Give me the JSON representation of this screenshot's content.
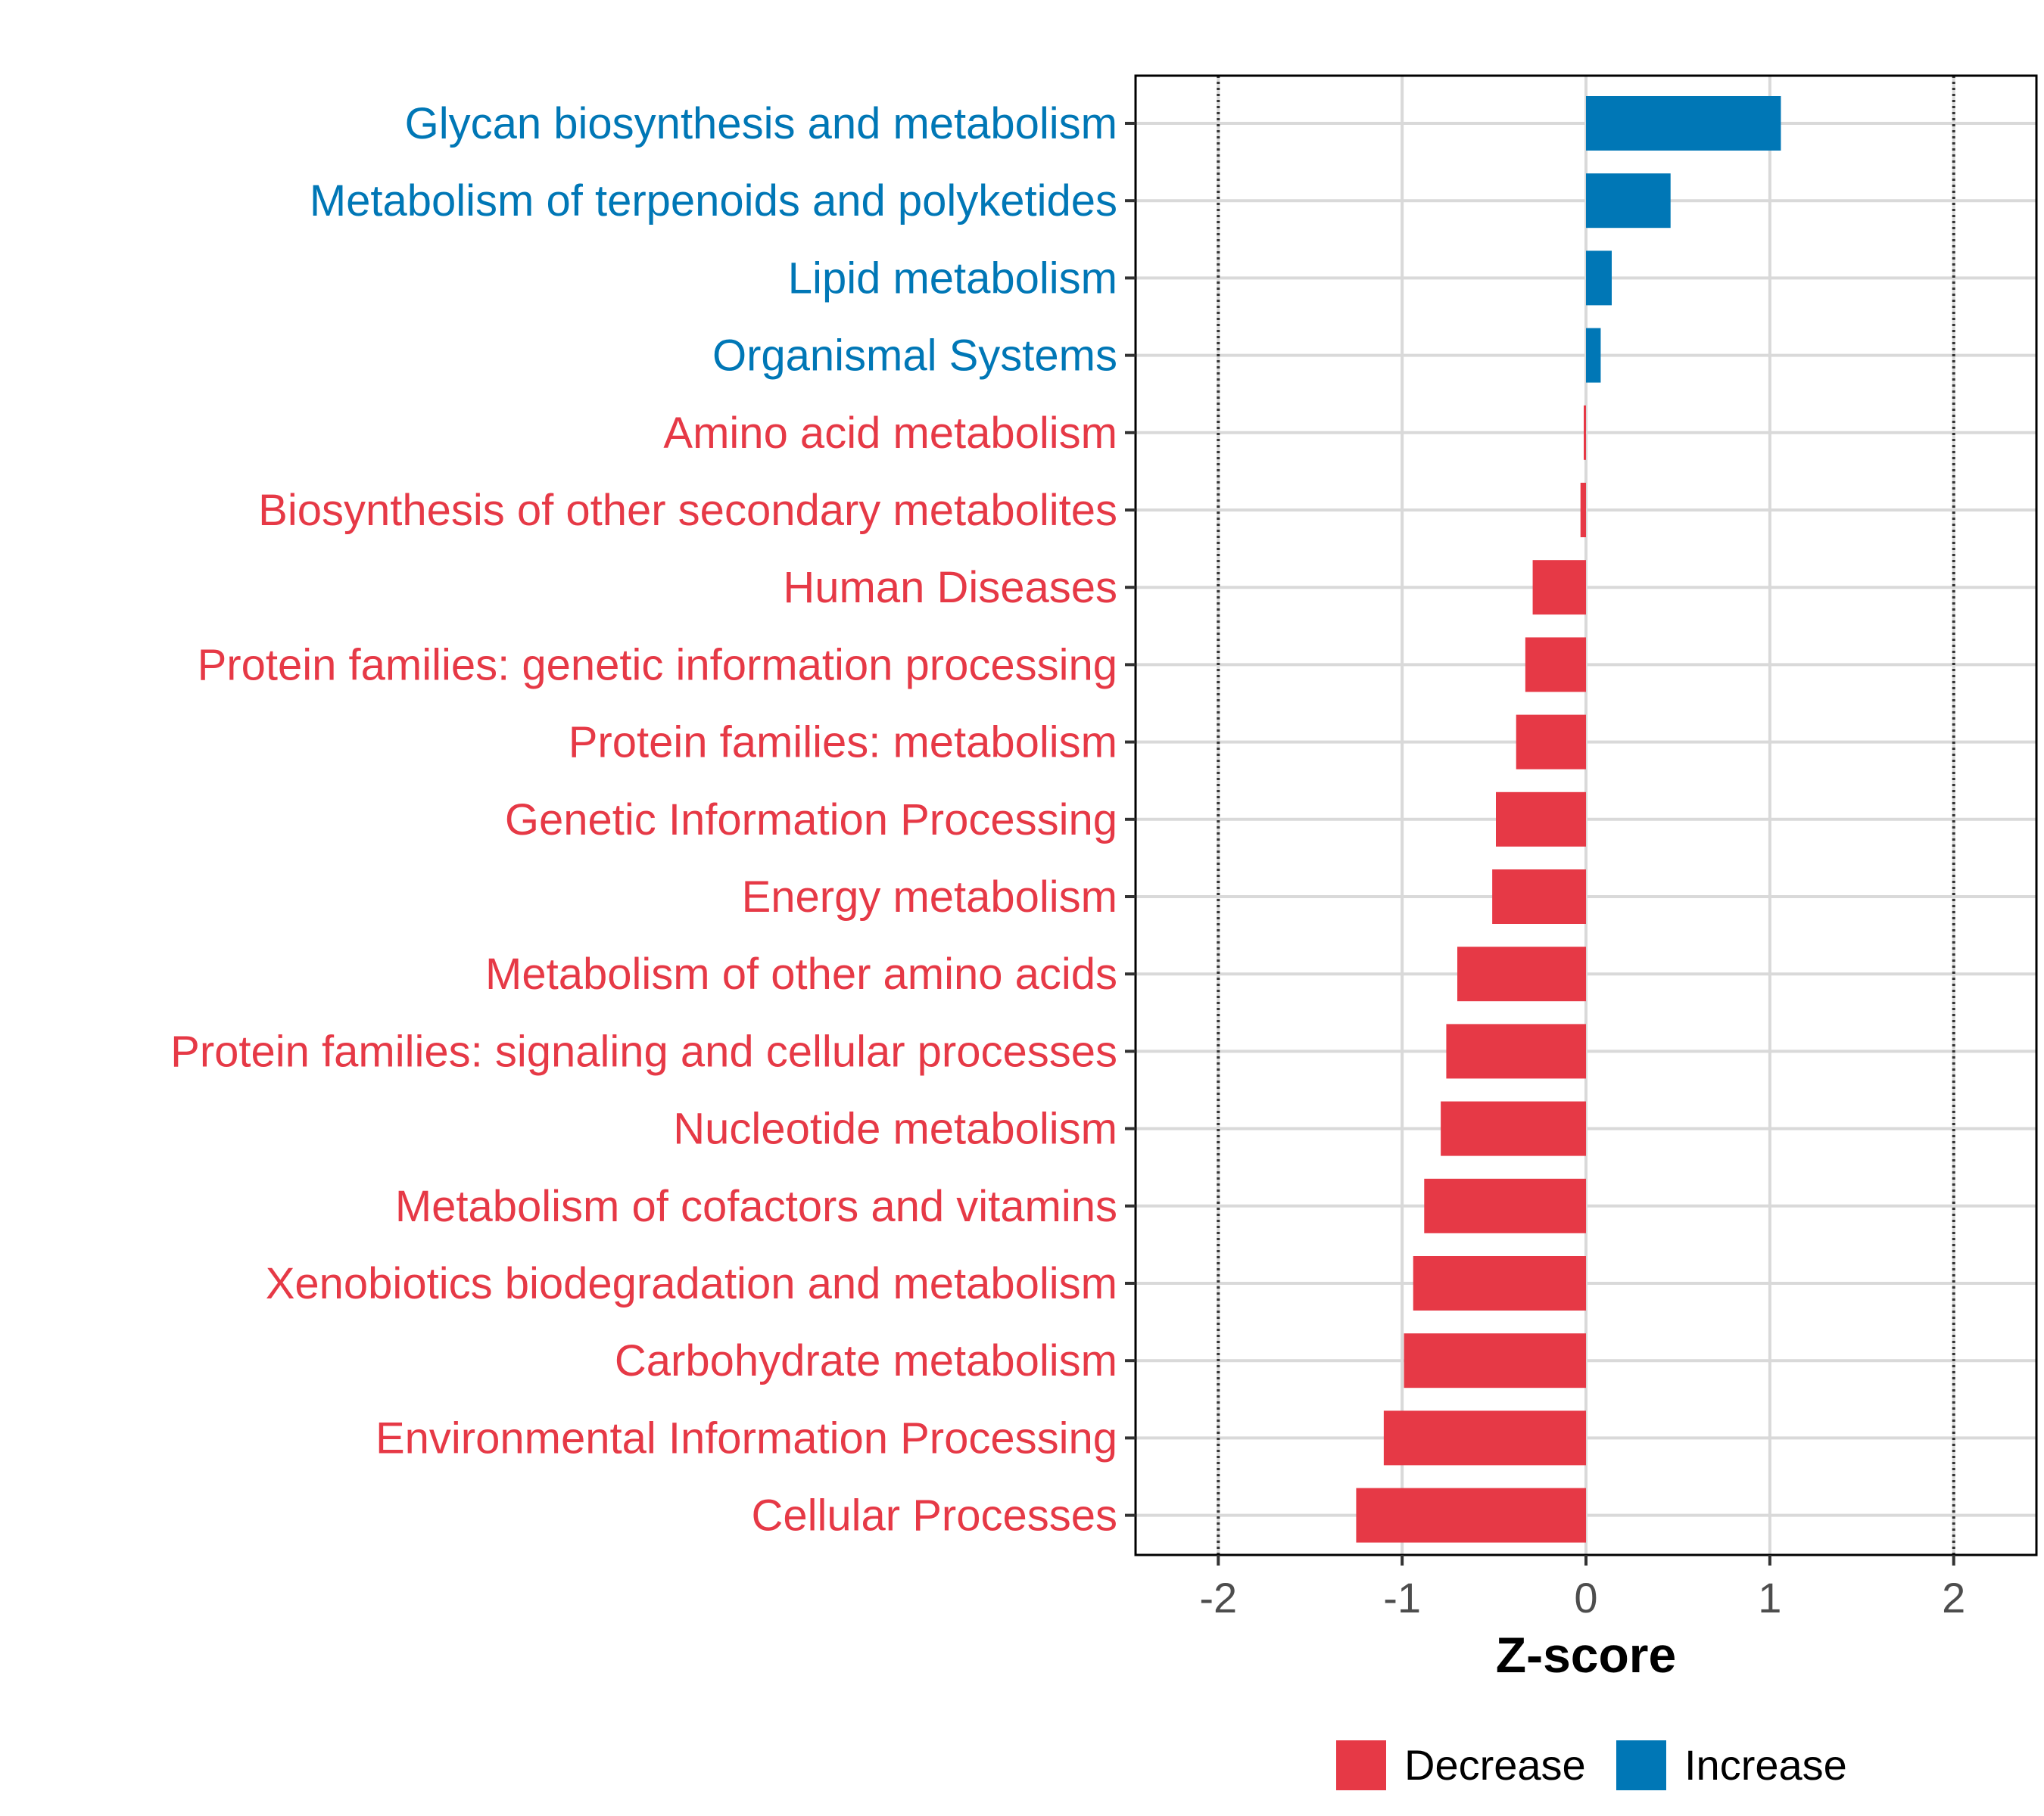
{
  "chart_data": {
    "type": "bar",
    "orientation": "horizontal",
    "xlabel": "Z-score",
    "xlim": [
      -2.45,
      2.45
    ],
    "xticks": [
      -2,
      -1,
      0,
      1,
      2
    ],
    "xtick_labels": [
      "-2",
      "-1",
      "0",
      "1",
      "2"
    ],
    "reference_lines": [
      -2,
      2
    ],
    "grid": true,
    "legend_position": "bottom",
    "categories": [
      "Glycan biosynthesis and metabolism",
      "Metabolism of terpenoids and polyketides",
      "Lipid metabolism",
      "Organismal Systems",
      "Amino acid metabolism",
      "Biosynthesis of other secondary metabolites",
      "Human Diseases",
      "Protein families: genetic information processing",
      "Protein families: metabolism",
      "Genetic Information Processing",
      "Energy metabolism",
      "Metabolism of other amino acids",
      "Protein families: signaling and cellular processes",
      "Nucleotide metabolism",
      "Metabolism of cofactors and vitamins",
      "Xenobiotics biodegradation and metabolism",
      "Carbohydrate metabolism",
      "Environmental Information Processing",
      "Cellular Processes"
    ],
    "values": [
      1.06,
      0.46,
      0.14,
      0.08,
      -0.01,
      -0.03,
      -0.29,
      -0.33,
      -0.38,
      -0.49,
      -0.51,
      -0.7,
      -0.76,
      -0.79,
      -0.88,
      -0.94,
      -0.99,
      -1.1,
      -1.25
    ],
    "legend": [
      {
        "name": "Decrease",
        "color": "#E63946"
      },
      {
        "name": "Increase",
        "color": "#0077B6"
      }
    ]
  },
  "colors": {
    "decrease": "#E63946",
    "increase": "#0077B6",
    "grid": "#d9d9d9",
    "axis": "#000000",
    "tick_text": "#4d4d4d"
  }
}
